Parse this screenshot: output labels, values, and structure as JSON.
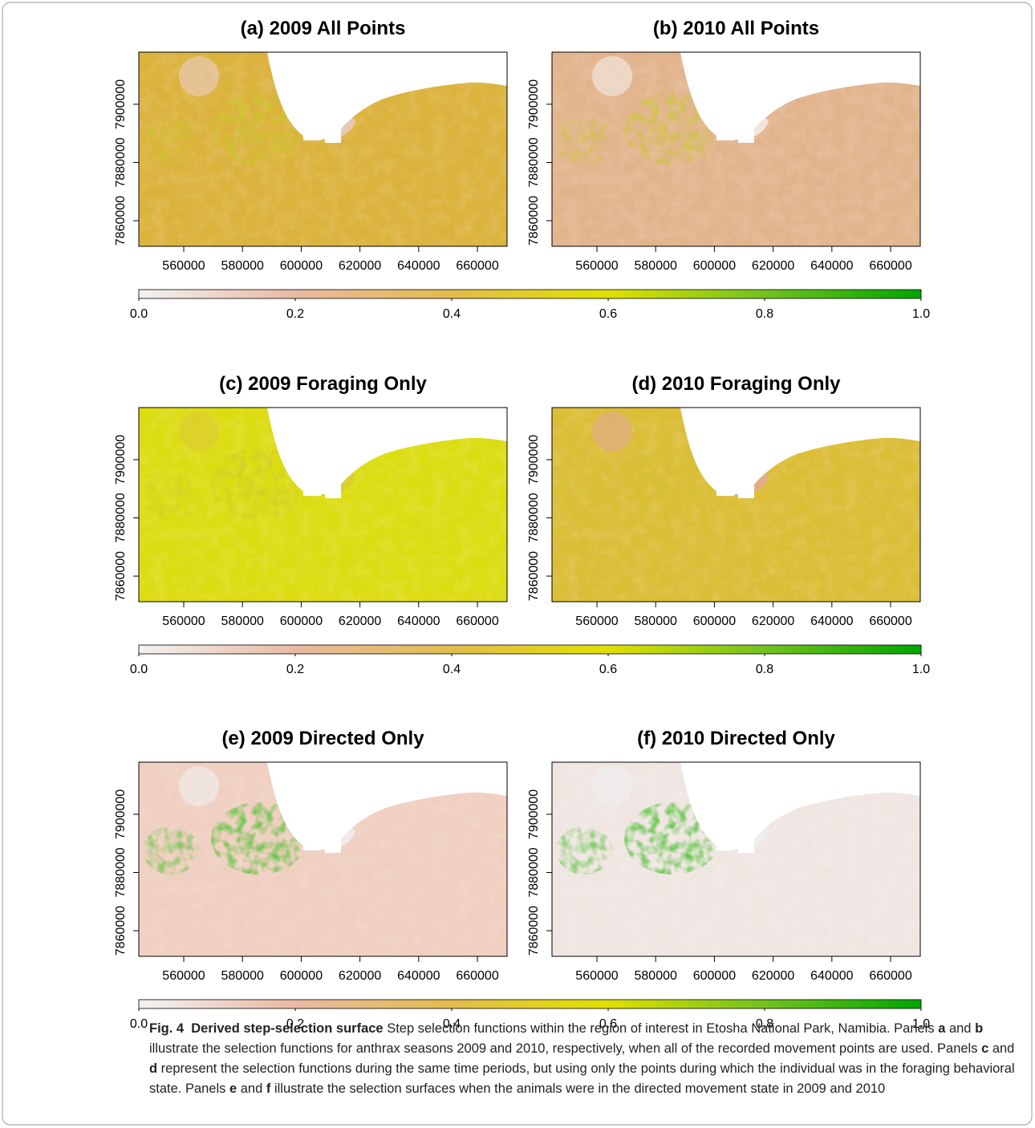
{
  "figure": {
    "panels": [
      {
        "title": "(a) 2009 All Points",
        "fill": "#dbb23c",
        "accent": "#c8c82a",
        "pan": "#e8c9b4"
      },
      {
        "title": "(b) 2010 All Points",
        "fill": "#e2b48c",
        "accent": "#c9c836",
        "pan": "#f1e4dc"
      },
      {
        "title": "(c) 2009 Foraging Only",
        "fill": "#dcdc12",
        "accent": "#d2cc2a",
        "pan": "#dccd30"
      },
      {
        "title": "(d) 2010 Foraging Only",
        "fill": "#dbbd36",
        "accent": "#d4c230",
        "pan": "#e1ad88"
      },
      {
        "title": "(e) 2009 Directed Only",
        "fill": "#efcfc0",
        "accent": "#48c12a",
        "pan": "#f0ebe9"
      },
      {
        "title": "(f) 2010 Directed Only",
        "fill": "#efe6e2",
        "accent": "#3fbd22",
        "pan": "#eeeeee"
      }
    ],
    "xlim": [
      544700,
      670100
    ],
    "xticks": [
      560000,
      580000,
      600000,
      620000,
      640000,
      660000
    ],
    "ylim": [
      7851200,
      7917900
    ],
    "yticks": [
      7860000,
      7880000,
      7900000
    ],
    "colorbar": {
      "lim": [
        0,
        1
      ],
      "colors": [
        "#f2f2f2",
        "#e9b9a2",
        "#e3bc4c",
        "#e0e000",
        "#72c21e",
        "#00a600"
      ],
      "ticks": [
        {
          "value": 0,
          "label": "0.0"
        },
        {
          "value": 0.2,
          "label": "0.2"
        },
        {
          "value": 0.4,
          "label": "0.4"
        },
        {
          "value": 0.6,
          "label": "0.6"
        },
        {
          "value": 0.8,
          "label": "0.8"
        },
        {
          "value": 1,
          "label": "1.0"
        }
      ]
    },
    "caption": {
      "label": "Fig. 4",
      "title": "Derived step-selection surface",
      "body": [
        {
          "text": "Step selection functions within the region of interest in Etosha National Park, Namibia. Panels "
        },
        {
          "text": "a",
          "bold": true
        },
        {
          "text": " and "
        },
        {
          "text": "b",
          "bold": true
        },
        {
          "text": " illustrate the selection functions for anthrax seasons 2009 and 2010, respectively, when all of the recorded movement points are used. Panels "
        },
        {
          "text": "c",
          "bold": true
        },
        {
          "text": " and "
        },
        {
          "text": "d",
          "bold": true
        },
        {
          "text": " represent the selection functions during the same time periods, but using only the points during which the individual was in the foraging behavioral state. Panels "
        },
        {
          "text": "e",
          "bold": true
        },
        {
          "text": " and "
        },
        {
          "text": "f",
          "bold": true
        },
        {
          "text": " illustrate the selection surfaces when the animals were in the directed movement state in 2009 and 2010"
        }
      ]
    }
  }
}
